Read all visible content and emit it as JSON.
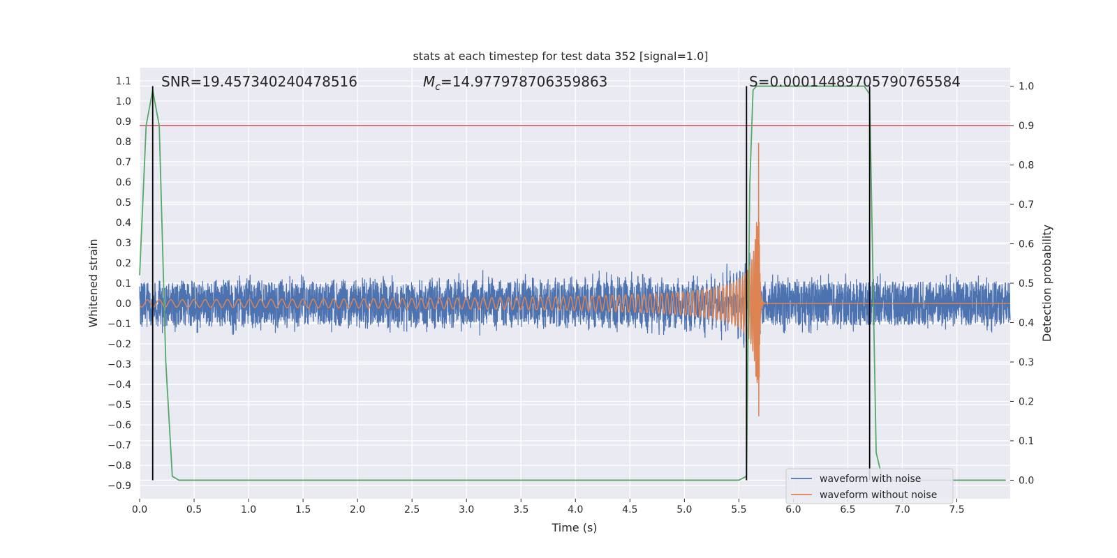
{
  "chart_data": {
    "type": "line",
    "title": "stats at each timestep for test data 352 [signal=1.0]",
    "xlabel": "Time (s)",
    "ylabel_left": "Whitened strain",
    "ylabel_right": "Detection probability",
    "xlim": [
      0.0,
      7.99
    ],
    "ylim_left": [
      -0.965,
      1.165
    ],
    "ylim_right": [
      -0.047,
      1.047
    ],
    "x_ticks": [
      "0.0",
      "0.5",
      "1.0",
      "1.5",
      "2.0",
      "2.5",
      "3.0",
      "3.5",
      "4.0",
      "4.5",
      "5.0",
      "5.5",
      "6.0",
      "6.5",
      "7.0",
      "7.5"
    ],
    "y_left_ticks": [
      "−0.9",
      "−0.8",
      "−0.7",
      "−0.6",
      "−0.5",
      "−0.4",
      "−0.3",
      "−0.2",
      "−0.1",
      "0.0",
      "0.1",
      "0.2",
      "0.3",
      "0.4",
      "0.5",
      "0.6",
      "0.7",
      "0.8",
      "0.9",
      "1.0",
      "1.1"
    ],
    "y_right_ticks": [
      "0.0",
      "0.1",
      "0.2",
      "0.3",
      "0.4",
      "0.5",
      "0.6",
      "0.7",
      "0.8",
      "0.9",
      "1.0"
    ],
    "grid": true,
    "legend_position": "lower-right",
    "annotations": {
      "snr": "SNR=19.457340240478516",
      "mc_prefix": "M",
      "mc_sub": "c",
      "mc_value": "=14.977978706359863",
      "s": "S=0.00014489705790765584"
    },
    "threshold": {
      "value": 0.9,
      "axis": "right",
      "color": "#c44e52"
    },
    "vertical_markers": [
      0.12,
      5.57,
      6.7
    ],
    "merger_time": 5.68,
    "series": [
      {
        "name": "waveform with noise",
        "color": "#4c72b0",
        "kind": "noisy_strain",
        "noise_amplitude": 0.11,
        "peak_amplitude": 0.55
      },
      {
        "name": "waveform without noise",
        "color": "#dd8452",
        "kind": "chirp",
        "initial_amplitude": 0.02,
        "peak_amplitude": 0.9
      },
      {
        "name": "detection probability",
        "color": "#55a868",
        "axis": "right",
        "x": [
          0.0,
          0.06,
          0.12,
          0.18,
          0.24,
          0.3,
          0.36,
          0.42,
          5.5,
          5.57,
          5.6,
          5.63,
          5.66,
          6.65,
          6.7,
          6.76,
          6.82,
          7.95
        ],
        "y": [
          0.52,
          0.9,
          0.99,
          0.9,
          0.3,
          0.01,
          0.0,
          0.0,
          0.0,
          0.01,
          0.75,
          0.99,
          1.0,
          1.0,
          0.98,
          0.07,
          0.0,
          0.0
        ]
      }
    ]
  }
}
